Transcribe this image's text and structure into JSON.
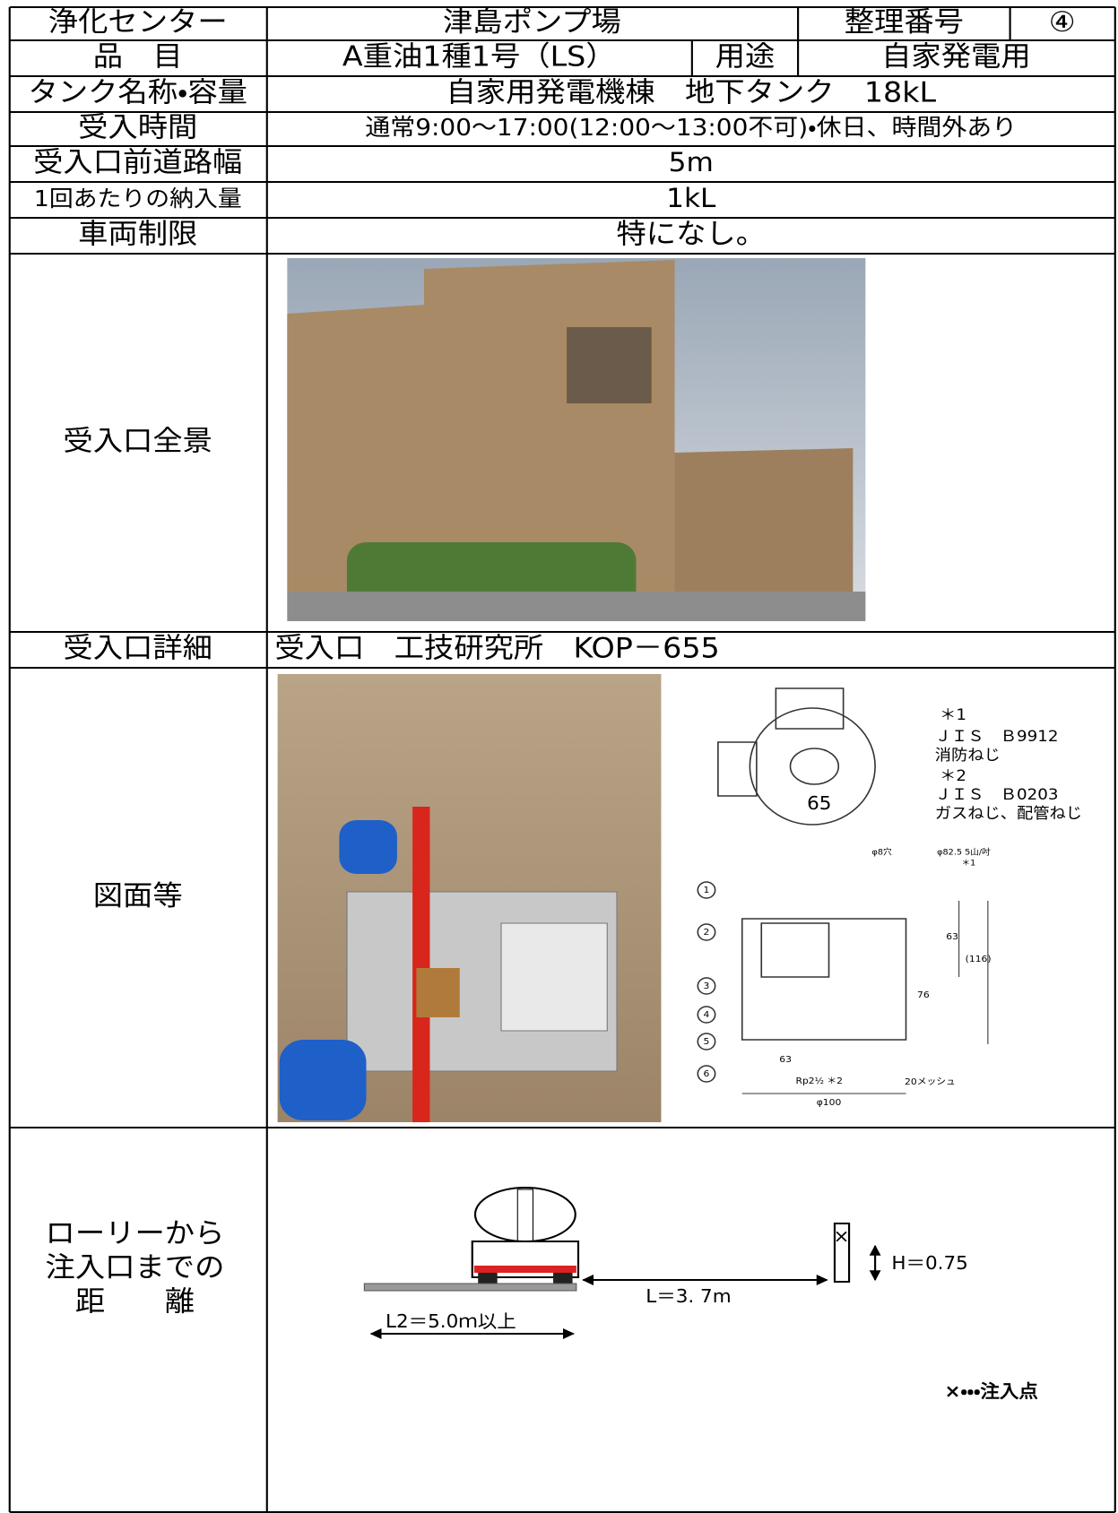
{
  "table": {
    "rows": [
      [
        "浄化センター",
        "津島ポンプ場",
        "整理番号",
        "④"
      ],
      [
        "品　目",
        "A重油1種1号（LS）",
        "用途",
        "自家発電用"
      ],
      [
        "タンク名称・容量",
        "自家用発電機棟　地下タンク　18kL"
      ],
      [
        "受入時間",
        "通常9:00～17:00(12:00～13:00不可)・休日、時間外あり"
      ],
      [
        "受入口前道路幅",
        "5m"
      ],
      [
        "1回あたりの納入量",
        "1kL"
      ],
      [
        "車両制限",
        "特になし。"
      ],
      [
        "受入口全景"
      ],
      [
        "受入口詳細",
        "受入口　工技研究所　KOP－655"
      ],
      [
        "図面等"
      ],
      [
        [
          "ローリーから",
          "注入口までの",
          "距　　離"
        ]
      ]
    ]
  },
  "drawing": {
    "notes": [
      "＊1",
      "ＪＩＳ　Ｂ9912",
      "消防ねじ",
      "＊2",
      "ＪＩＳ　Ｂ0203",
      "ガスねじ、配管ねじ"
    ],
    "dims": [
      "65",
      "φ8穴",
      "φ82.5 5山/吋",
      "＊1",
      "63",
      "(116)",
      "76",
      "63",
      "Rp2½ ＊2",
      "20メッシュ",
      "φ100"
    ],
    "parts": [
      "1",
      "2",
      "3",
      "4",
      "5",
      "6"
    ]
  },
  "distance": {
    "point_mark": "×",
    "height": "H＝0.75",
    "length": "L＝3. 7m",
    "l2": "L2＝5.0ｍ以上",
    "legend": "×・・・注入点"
  }
}
